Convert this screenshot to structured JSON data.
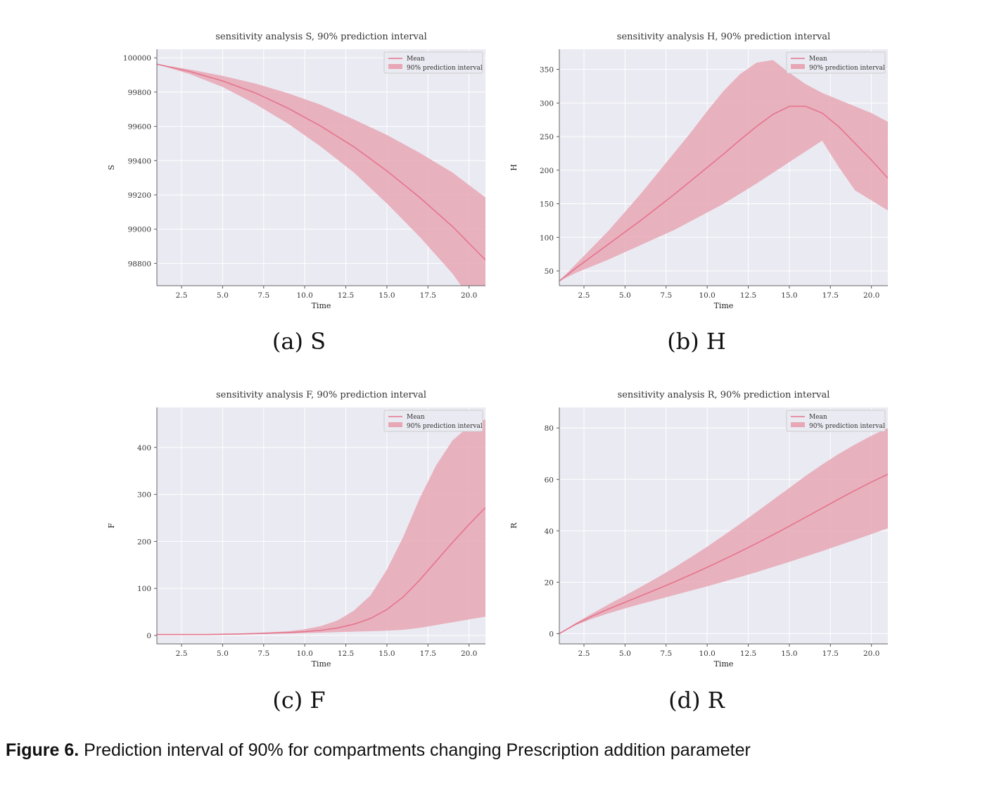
{
  "figure": {
    "caption_label": "Figure 6.",
    "caption_text": "Prediction interval of 90% for compartments changing Prescription addition parameter"
  },
  "colors": {
    "mean": "#e5748c",
    "band": "#e7a7b5",
    "plot_bg": "#eaeaf2",
    "grid": "#ffffff"
  },
  "chart_data": [
    {
      "id": "S",
      "type": "area",
      "subcaption": "(a) S",
      "title": "sensitivity analysis S, 90% prediction interval",
      "xlabel": "Time",
      "ylabel": "S",
      "xlim": [
        1,
        21
      ],
      "ylim": [
        98670,
        100050
      ],
      "xticks": [
        2.5,
        5.0,
        7.5,
        10.0,
        12.5,
        15.0,
        17.5,
        20.0
      ],
      "yticks": [
        98800,
        99000,
        99200,
        99400,
        99600,
        99800,
        100000
      ],
      "legend": {
        "position": "upper right",
        "mean_label": "Mean",
        "band_label": "90% prediction interval"
      },
      "x": [
        1,
        3,
        5,
        7,
        9,
        11,
        13,
        15,
        17,
        19,
        21
      ],
      "mean": [
        99963,
        99920,
        99865,
        99795,
        99705,
        99600,
        99480,
        99340,
        99185,
        99015,
        98820
      ],
      "lower": [
        99963,
        99905,
        99830,
        99730,
        99615,
        99480,
        99330,
        99150,
        98955,
        98740,
        98470
      ],
      "upper": [
        99963,
        99932,
        99895,
        99850,
        99793,
        99725,
        99640,
        99550,
        99445,
        99330,
        99185
      ]
    },
    {
      "id": "H",
      "type": "area",
      "subcaption": "(b) H",
      "title": "sensitivity analysis H, 90% prediction interval",
      "xlabel": "Time",
      "ylabel": "H",
      "xlim": [
        1,
        21
      ],
      "ylim": [
        28,
        380
      ],
      "xticks": [
        2.5,
        5.0,
        7.5,
        10.0,
        12.5,
        15.0,
        17.5,
        20.0
      ],
      "yticks": [
        50,
        100,
        150,
        200,
        250,
        300,
        350
      ],
      "legend": {
        "position": "upper right",
        "mean_label": "Mean",
        "band_label": "90% prediction interval"
      },
      "x": [
        1,
        2,
        3,
        4,
        5,
        6,
        7,
        8,
        9,
        10,
        11,
        12,
        13,
        14,
        15,
        16,
        17,
        18,
        19,
        20,
        21
      ],
      "mean": [
        35,
        54,
        72,
        90,
        108,
        126,
        145,
        164,
        184,
        204,
        224,
        245,
        265,
        283,
        295,
        295,
        285,
        265,
        240,
        215,
        188
      ],
      "lower": [
        35,
        47,
        57,
        67,
        78,
        89,
        100,
        111,
        124,
        137,
        150,
        165,
        180,
        196,
        212,
        228,
        244,
        205,
        170,
        155,
        140
      ],
      "upper": [
        35,
        60,
        85,
        110,
        138,
        166,
        196,
        226,
        256,
        288,
        318,
        343,
        360,
        364,
        345,
        328,
        315,
        305,
        295,
        285,
        272
      ]
    },
    {
      "id": "F",
      "type": "area",
      "subcaption": "(c) F",
      "title": "sensitivity analysis F, 90% prediction interval",
      "xlabel": "Time",
      "ylabel": "F",
      "xlim": [
        1,
        21
      ],
      "ylim": [
        -18,
        485
      ],
      "xticks": [
        2.5,
        5.0,
        7.5,
        10.0,
        12.5,
        15.0,
        17.5,
        20.0
      ],
      "yticks": [
        0,
        100,
        200,
        300,
        400
      ],
      "legend": {
        "position": "upper right",
        "mean_label": "Mean",
        "band_label": "90% prediction interval"
      },
      "x": [
        1,
        2,
        3,
        4,
        5,
        6,
        7,
        8,
        9,
        10,
        11,
        12,
        13,
        14,
        15,
        16,
        17,
        18,
        19,
        20,
        21
      ],
      "mean": [
        2,
        2,
        2,
        2,
        2.5,
        3,
        4,
        5,
        6,
        8,
        11,
        16,
        24,
        36,
        55,
        82,
        118,
        158,
        198,
        236,
        272
      ],
      "lower": [
        2,
        2,
        2,
        2,
        2.2,
        2.5,
        3,
        3.5,
        4,
        5,
        6,
        7,
        8,
        9,
        10,
        12,
        16,
        22,
        28,
        34,
        40
      ],
      "upper": [
        2,
        2,
        2,
        2,
        3,
        4,
        5,
        7,
        9,
        13,
        20,
        32,
        53,
        85,
        140,
        210,
        292,
        362,
        415,
        445,
        460
      ]
    },
    {
      "id": "R",
      "type": "area",
      "subcaption": "(d) R",
      "title": "sensitivity analysis R, 90% prediction interval",
      "xlabel": "Time",
      "ylabel": "R",
      "xlim": [
        1,
        21
      ],
      "ylim": [
        -4,
        88
      ],
      "xticks": [
        2.5,
        5.0,
        7.5,
        10.0,
        12.5,
        15.0,
        17.5,
        20.0
      ],
      "yticks": [
        0,
        20,
        40,
        60,
        80
      ],
      "legend": {
        "position": "upper right",
        "mean_label": "Mean",
        "band_label": "90% prediction interval"
      },
      "x": [
        1,
        2,
        3,
        4,
        5,
        6,
        7,
        8,
        9,
        10,
        11,
        12,
        13,
        14,
        15,
        16,
        17,
        18,
        19,
        20,
        21
      ],
      "mean": [
        0,
        3.7,
        6.8,
        9.6,
        12.2,
        14.8,
        17.4,
        20.1,
        22.9,
        25.8,
        28.8,
        31.9,
        35.1,
        38.4,
        41.8,
        45.3,
        48.8,
        52.3,
        55.7,
        59,
        62
      ],
      "lower": [
        0,
        3.3,
        5.8,
        7.9,
        9.8,
        11.6,
        13.3,
        15,
        16.7,
        18.4,
        20.2,
        22,
        23.9,
        25.9,
        27.9,
        30,
        32.1,
        34.3,
        36.5,
        38.7,
        41
      ],
      "upper": [
        0,
        4.1,
        7.8,
        11.4,
        14.8,
        18.3,
        21.9,
        25.7,
        29.7,
        33.8,
        38.2,
        42.7,
        47.3,
        52,
        56.7,
        61.4,
        65.8,
        69.9,
        73.6,
        77,
        80
      ]
    }
  ]
}
